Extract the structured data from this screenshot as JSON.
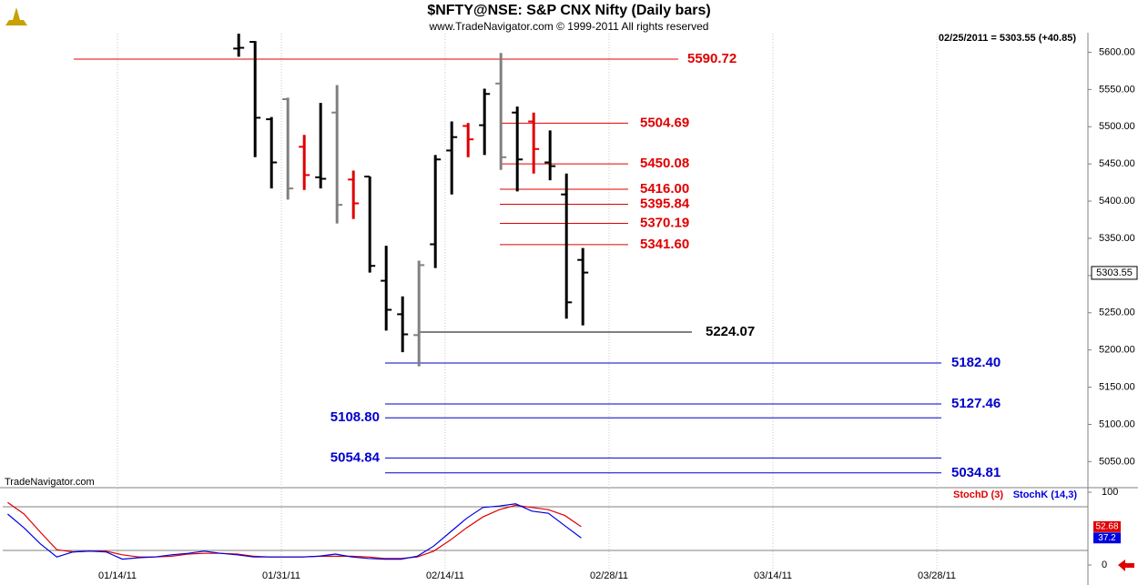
{
  "chart_data": [
    {
      "type": "ohlc",
      "title": "$NFTY@NSE:  S&P CNX Nifty  (Daily bars)",
      "subtitle": "www.TradeNavigator.com © 1999-2011 All rights reserved",
      "annotation": "02/25/2011 = 5303.55 (+40.85)",
      "watermark": "TradeNavigator.com",
      "x": [
        14.4,
        15.4,
        16.4,
        17.4,
        18.4,
        19.4,
        20.4,
        21.4,
        22.4,
        23.4,
        24.4,
        25.4,
        26.4,
        27.4,
        28.4,
        29.4,
        30.4,
        31.4,
        32.4,
        33.4,
        34.4,
        35.4
      ],
      "open": [
        5605,
        5614,
        5510,
        5537,
        5473,
        5432,
        5519,
        5429,
        5433,
        5293,
        5248,
        5220,
        5342,
        5468,
        5501,
        5502,
        5558,
        5519,
        5507,
        5452,
        5409,
        5321
      ],
      "high": [
        5625,
        5615,
        5513,
        5539,
        5489,
        5532,
        5556,
        5441,
        5433,
        5340,
        5272,
        5320,
        5462,
        5507,
        5505,
        5551,
        5599,
        5527,
        5519,
        5495,
        5437,
        5337
      ],
      "low": [
        5594,
        5459,
        5417,
        5402,
        5415,
        5417,
        5370,
        5376,
        5304,
        5226,
        5197,
        5178,
        5310,
        5409,
        5459,
        5462,
        5442,
        5413,
        5437,
        5428,
        5242,
        5233
      ],
      "close": [
        5606,
        5512,
        5452,
        5417,
        5435,
        5430,
        5395,
        5397,
        5313,
        5254,
        5221,
        5314,
        5456,
        5486,
        5483,
        5544,
        5459,
        5456,
        5470,
        5447,
        5264,
        5304
      ],
      "colors": [
        "#000000",
        "#000000",
        "#000000",
        "#808080",
        "#e00000",
        "#000000",
        "#808080",
        "#e00000",
        "#000000",
        "#000000",
        "#000000",
        "#808080",
        "#000000",
        "#000000",
        "#e00000",
        "#000000",
        "#808080",
        "#000000",
        "#e00000",
        "#000000",
        "#000000",
        "#000000"
      ],
      "xlim": [
        0,
        66
      ],
      "xticks": [
        {
          "value": 7,
          "label": "01/14/11"
        },
        {
          "value": 17,
          "label": "01/31/11"
        },
        {
          "value": 27,
          "label": "02/14/11"
        },
        {
          "value": 37,
          "label": "02/28/11"
        },
        {
          "value": 47,
          "label": "03/14/11"
        },
        {
          "value": 57,
          "label": "03/28/11"
        }
      ],
      "ylim": [
        5015,
        5625
      ],
      "yticks": [
        {
          "value": 5050,
          "label": "5050.00"
        },
        {
          "value": 5100,
          "label": "5100.00"
        },
        {
          "value": 5150,
          "label": "5150.00"
        },
        {
          "value": 5200,
          "label": "5200.00"
        },
        {
          "value": 5250,
          "label": "5250.00"
        },
        {
          "value": 5300,
          "label": "5300.00"
        },
        {
          "value": 5350,
          "label": "5350.00"
        },
        {
          "value": 5400,
          "label": "5400.00"
        },
        {
          "value": 5450,
          "label": "5450.00"
        },
        {
          "value": 5500,
          "label": "5500.00"
        },
        {
          "value": 5550,
          "label": "5550.00"
        },
        {
          "value": 5600,
          "label": "5600.00"
        }
      ],
      "last_value": 5303.55,
      "levels": [
        {
          "value": 5590.72,
          "color": "#e00000"
        },
        {
          "value": 5504.69,
          "color": "#e00000"
        },
        {
          "value": 5450.08,
          "color": "#e00000"
        },
        {
          "value": 5416,
          "label": "5416.00",
          "color": "#e00000"
        },
        {
          "value": 5395.84,
          "color": "#e00000"
        },
        {
          "value": 5370.19,
          "color": "#e00000"
        },
        {
          "value": 5341.6,
          "label": "5341.60",
          "color": "#e00000"
        },
        {
          "value": 5224.07,
          "color": "#000000"
        },
        {
          "value": 5182.4,
          "label": "5182.40",
          "color": "#0000cc"
        },
        {
          "value": 5127.46,
          "color": "#0000cc"
        },
        {
          "value": 5108.8,
          "label": "5108.80",
          "color": "#0000cc"
        },
        {
          "value": 5054.84,
          "color": "#0000cc"
        },
        {
          "value": 5034.81,
          "color": "#0000cc"
        }
      ]
    },
    {
      "type": "line",
      "x": [
        0.3,
        1.3,
        2.3,
        3.3,
        4.3,
        5.3,
        6.3,
        7.3,
        8.3,
        9.3,
        10.3,
        11.3,
        12.3,
        13.3,
        14.3,
        15.3,
        16.3,
        17.3,
        18.3,
        19.3,
        20.3,
        21.3,
        22.3,
        23.3,
        24.3,
        25.3,
        26.3,
        27.3,
        28.3,
        29.3,
        30.3,
        31.3,
        32.3,
        33.3,
        34.3,
        35.3
      ],
      "series": [
        {
          "name": "StochD (3)",
          "color": "#e00000",
          "values": [
            86,
            70,
            45,
            21,
            18,
            19,
            19,
            14,
            11,
            11,
            12,
            15,
            16,
            16,
            15,
            12,
            11,
            11,
            11,
            12,
            12,
            12,
            11,
            9,
            9,
            11,
            19,
            34,
            51,
            66,
            76,
            82,
            79,
            76,
            68,
            52.68
          ]
        },
        {
          "name": "StochK (14,3)",
          "color": "#0000e0",
          "values": [
            70,
            51,
            29,
            11,
            18,
            19,
            18,
            8,
            10,
            11,
            14,
            16,
            19,
            16,
            14,
            11,
            11,
            11,
            11,
            12,
            15,
            11,
            9,
            8,
            8,
            12,
            26,
            45,
            64,
            79,
            81,
            84,
            74,
            71,
            54,
            37.2
          ]
        }
      ],
      "xlim": [
        0,
        66
      ],
      "ylim": [
        -10,
        105
      ],
      "yticks": [
        0,
        100
      ],
      "levels": [
        80,
        20
      ]
    }
  ]
}
